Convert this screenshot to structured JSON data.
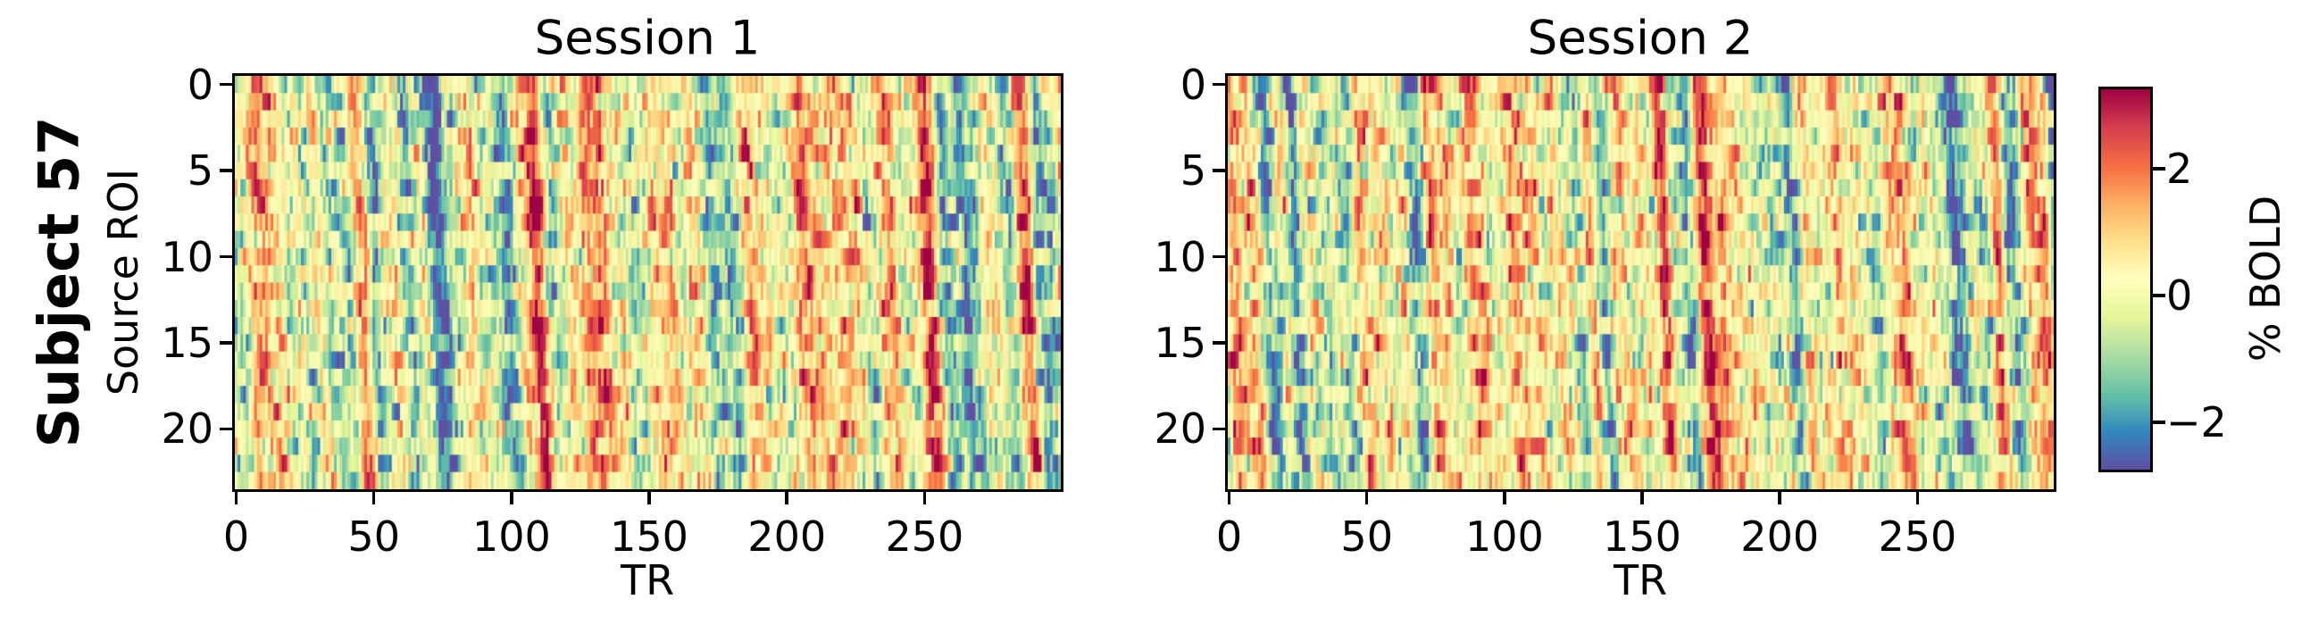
{
  "figure": {
    "label": "Subject 57",
    "background_color": "#ffffff",
    "text_color": "#000000"
  },
  "panels": [
    {
      "title": "Session 1",
      "xlabel": "TR",
      "ylabel": "Source ROI"
    },
    {
      "title": "Session 2",
      "xlabel": "TR",
      "ylabel": null
    }
  ],
  "colorbar": {
    "label": "% BOLD",
    "tick_values": [
      2,
      0,
      -2
    ],
    "tick_labels": [
      "2",
      "0",
      "−2"
    ],
    "vmin": -2.75,
    "vmax": 3.25,
    "colormap": "Spectral_r",
    "stops": [
      "#5e4fa2",
      "#3288bd",
      "#66c2a5",
      "#abdda4",
      "#e6f598",
      "#ffffbf",
      "#fee08b",
      "#fdae61",
      "#f46d43",
      "#d53e4f",
      "#9e0142"
    ]
  },
  "chart_data": [
    {
      "type": "heatmap",
      "title": "Session 1",
      "xlabel": "TR",
      "ylabel": "Source ROI",
      "x_ticks": [
        0,
        50,
        100,
        150,
        200,
        250
      ],
      "x_tick_labels": [
        "0",
        "50",
        "100",
        "150",
        "200",
        "250"
      ],
      "y_ticks": [
        0,
        5,
        10,
        15,
        20
      ],
      "y_tick_labels": [
        "0",
        "5",
        "10",
        "15",
        "20"
      ],
      "n_rows": 24,
      "n_cols": 300,
      "x_range": [
        -0.5,
        299.5
      ],
      "y_range": [
        -0.5,
        23.5
      ],
      "value_label": "% BOLD",
      "value_range": [
        -2.75,
        3.25
      ],
      "colormap": "Spectral_r",
      "interpolation": "nearest",
      "grid": false,
      "description": "BOLD percent-signal-change time series for 24 source ROIs over ~300 TRs; mostly near-zero (pale yellow-green) with transient positive (orange/red) and negative (teal/blue) events that are partially synchronized across ROIs as vertical bands.",
      "synthesis": {
        "seed": 571,
        "global_amplitude": 1.0,
        "row_amplitude": 0.78,
        "spike_amplitude": 0.38,
        "baseline": 0.12,
        "global_smooth": 5,
        "row_smooth": 3,
        "row_lag_tr": 0.25
      }
    },
    {
      "type": "heatmap",
      "title": "Session 2",
      "xlabel": "TR",
      "ylabel": null,
      "x_ticks": [
        0,
        50,
        100,
        150,
        200,
        250
      ],
      "x_tick_labels": [
        "0",
        "50",
        "100",
        "150",
        "200",
        "250"
      ],
      "y_ticks": [
        0,
        5,
        10,
        15,
        20
      ],
      "y_tick_labels": [
        "0",
        "5",
        "10",
        "15",
        "20"
      ],
      "n_rows": 24,
      "n_cols": 300,
      "x_range": [
        -0.5,
        299.5
      ],
      "y_range": [
        -0.5,
        23.5
      ],
      "value_label": "% BOLD",
      "value_range": [
        -2.75,
        3.25
      ],
      "colormap": "Spectral_r",
      "interpolation": "nearest",
      "grid": false,
      "description": "Second session of the same subject: similar statistical structure, different realization.",
      "synthesis": {
        "seed": 572,
        "global_amplitude": 1.0,
        "row_amplitude": 0.78,
        "spike_amplitude": 0.38,
        "baseline": 0.12,
        "global_smooth": 5,
        "row_smooth": 3,
        "row_lag_tr": 0.25
      }
    }
  ]
}
